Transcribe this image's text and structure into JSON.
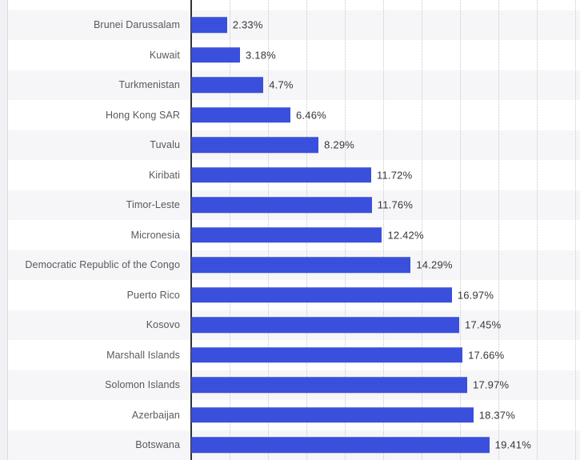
{
  "page": {
    "background": "#ffffff",
    "left_gutter_color": "#eff1f4"
  },
  "chart_data": {
    "type": "bar",
    "orientation": "horizontal",
    "title": "",
    "xlabel": "",
    "ylabel": "",
    "xlim": [
      0,
      25.3
    ],
    "grid": true,
    "grid_interval": 2.5,
    "legend": "none",
    "categories": [
      "Brunei Darussalam",
      "Kuwait",
      "Turkmenistan",
      "Hong Kong SAR",
      "Tuvalu",
      "Kiribati",
      "Timor-Leste",
      "Micronesia",
      "Democratic Republic of the Congo",
      "Puerto Rico",
      "Kosovo",
      "Marshall Islands",
      "Solomon Islands",
      "Azerbaijan",
      "Botswana"
    ],
    "values": [
      2.33,
      3.18,
      4.7,
      6.46,
      8.29,
      11.72,
      11.76,
      12.42,
      14.29,
      16.97,
      17.45,
      17.66,
      17.97,
      18.37,
      19.41
    ],
    "value_labels": [
      "2.33%",
      "3.18%",
      "4.7%",
      "6.46%",
      "8.29%",
      "11.72%",
      "11.76%",
      "12.42%",
      "14.29%",
      "16.97%",
      "17.45%",
      "17.66%",
      "17.97%",
      "18.37%",
      "19.41%"
    ],
    "colors": {
      "bar": "#3a50dc",
      "row_stripe": "#f6f6f8",
      "gridline": "#c8c8c8",
      "axis_line": "#333333",
      "category_label": "#58595b",
      "value_label": "#363636"
    }
  }
}
